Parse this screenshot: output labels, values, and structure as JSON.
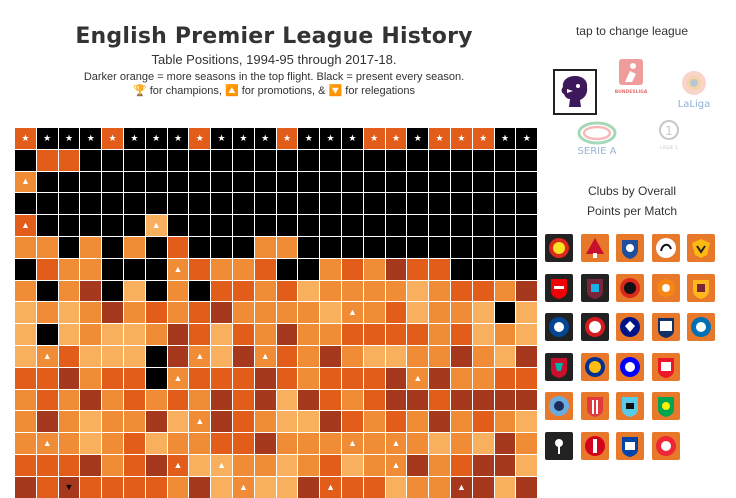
{
  "header": {
    "title": "English Premier League History",
    "subtitle": "Table Positions, 1994-95 through 2017-18.",
    "note_line1": "Darker orange = more seasons in the top flight. Black = present every season.",
    "note_line2": "🏆 for champions, 🔼 for promotions, & 🔽 for relegations"
  },
  "legend_colors": [
    "#000000",
    "#a5381d",
    "#e25c1a",
    "#f08c36",
    "#f8b05e"
  ],
  "markers": {
    "champion": "★",
    "promoted": "▲",
    "relegated": "▼"
  },
  "table": {
    "seasons": 24,
    "rows": [
      "cccccccccccccccccccccccc",
      "ACCAAAAAAAAAAAAAAAAAAAAA",
      "pAAAAAAAAAAAAAAAAAAAAAAA",
      "AAAAAAAAAAAAAAAAAAAAAAAA",
      "CAAAAAbAAAAAAAAAAAAAAAAA",
      "DDADADACAAADDAAAAAAAAAAA",
      "ACDDAAADCDDCAADCDBCCAAAA",
      "DADBAEADACCDCEDDDDEDCCDB",
      "EDEDBDCDCBDDDDEpDCEDDEAE",
      "EAEDEEDBCECDBDDCCCCDCEDE",
      "EpCEEEABpEBpCDBDEEDDBDEB",
      "CCBDCCApCCCBCDCCCBpBDDCC",
      "DCDBDCDCDBCBEBCDCBBCBBBB",
      "DBDEDDBEpBCDEEBCDCDBDCDE",
      "DpDEDCEDDCCBDDDpDpDEDEBD",
      "CCCBDCBCEEDDEDCEDDBDCBBE",
      "BCBCCCCDBEpEEBCCCEDDBBEB"
    ],
    "champions": [
      1,
      2,
      3,
      2,
      1,
      4,
      5,
      6,
      4,
      1,
      1,
      3,
      4,
      1,
      3,
      4,
      1,
      2,
      1,
      5,
      2,
      6,
      2,
      2
    ],
    "promotions": [
      [
        4,
        0
      ],
      [
        6,
        7
      ],
      [
        8,
        15
      ],
      [
        10,
        1
      ],
      [
        10,
        8
      ],
      [
        10,
        11
      ],
      [
        11,
        7
      ],
      [
        11,
        18
      ],
      [
        13,
        8
      ],
      [
        14,
        1
      ],
      [
        14,
        15
      ],
      [
        14,
        17
      ],
      [
        15,
        7
      ],
      [
        15,
        9
      ],
      [
        15,
        17
      ],
      [
        16,
        10
      ],
      [
        16,
        14
      ],
      [
        16,
        20
      ],
      [
        17,
        7
      ],
      [
        17,
        8
      ],
      [
        18,
        2
      ],
      [
        18,
        13
      ],
      [
        18,
        16
      ],
      [
        19,
        15
      ],
      [
        19,
        19
      ],
      [
        20,
        3
      ],
      [
        20,
        5
      ],
      [
        20,
        12
      ]
    ],
    "relegations": [
      [
        16,
        2
      ]
    ]
  },
  "league_selector": {
    "prompt": "tap to change league",
    "leagues": [
      {
        "name": "Premier League",
        "selected": true
      },
      {
        "name": "Bundesliga",
        "selected": false
      },
      {
        "name": "LaLiga",
        "selected": false
      },
      {
        "name": "Serie A",
        "selected": false
      },
      {
        "name": "Ligue 1",
        "selected": false
      }
    ],
    "logo_text": {
      "bundesliga": "BUNDESLIGA",
      "laliga": "LaLiga",
      "seriea": "SERIE A",
      "ligue1": "LIGUE 1"
    }
  },
  "clubs_panel": {
    "title_line1": "Clubs by Overall",
    "title_line2": "Points per Match",
    "clubs": [
      {
        "name": "Manchester United",
        "icon": "man-utd-crest-icon",
        "bg": "dark"
      },
      {
        "name": "Nottingham Forest",
        "icon": "forest-crest-icon",
        "bg": "orange"
      },
      {
        "name": "Sheffield Wednesday",
        "icon": "sheff-wed-crest-icon",
        "bg": "orange"
      },
      {
        "name": "Derby County",
        "icon": "derby-crest-icon",
        "bg": "orange"
      },
      {
        "name": "Wolverhampton Wanderers",
        "icon": "wolves-crest-icon",
        "bg": "orange"
      },
      {
        "name": "Arsenal",
        "icon": "arsenal-crest-icon",
        "bg": "dark"
      },
      {
        "name": "West Ham United",
        "icon": "west-ham-crest-icon",
        "bg": "dark"
      },
      {
        "name": "Bournemouth",
        "icon": "bournemouth-crest-icon",
        "bg": "orange"
      },
      {
        "name": "Blackpool",
        "icon": "blackpool-crest-icon",
        "bg": "orange"
      },
      {
        "name": "Bradford City",
        "icon": "bradford-crest-icon",
        "bg": "orange"
      },
      {
        "name": "Chelsea",
        "icon": "chelsea-crest-icon",
        "bg": "dark"
      },
      {
        "name": "Southampton",
        "icon": "southampton-crest-icon",
        "bg": "dark"
      },
      {
        "name": "Portsmouth",
        "icon": "portsmouth-crest-icon",
        "bg": "orange"
      },
      {
        "name": "West Bromwich Albion",
        "icon": "west-brom-crest-icon",
        "bg": "orange"
      },
      {
        "name": "Cardiff City",
        "icon": "cardiff-crest-icon",
        "bg": "orange"
      },
      {
        "name": "Liverpool",
        "icon": "liverpool-crest-icon",
        "bg": "dark"
      },
      {
        "name": "Leicester City",
        "icon": "leicester-crest-icon",
        "bg": "orange"
      },
      {
        "name": "Birmingham City",
        "icon": "birmingham-crest-icon",
        "bg": "orange"
      },
      {
        "name": "Sunderland",
        "icon": "sunderland-crest-icon",
        "bg": "orange"
      },
      {
        "name": "Manchester City",
        "icon": "man-city-crest-icon",
        "bg": "orange"
      },
      {
        "name": "Stoke City",
        "icon": "stoke-crest-icon",
        "bg": "orange"
      },
      {
        "name": "Coventry City",
        "icon": "coventry-crest-icon",
        "bg": "orange"
      },
      {
        "name": "Norwich City",
        "icon": "norwich-crest-icon",
        "bg": "orange"
      },
      {
        "name": "Tottenham Hotspur",
        "icon": "tottenham-crest-icon",
        "bg": "dark"
      },
      {
        "name": "Charlton Athletic",
        "icon": "charlton-crest-icon",
        "bg": "orange"
      },
      {
        "name": "Ipswich Town",
        "icon": "ipswich-crest-icon",
        "bg": "orange"
      },
      {
        "name": "Sheffield United",
        "icon": "sheff-utd-crest-icon",
        "bg": "orange"
      }
    ]
  }
}
